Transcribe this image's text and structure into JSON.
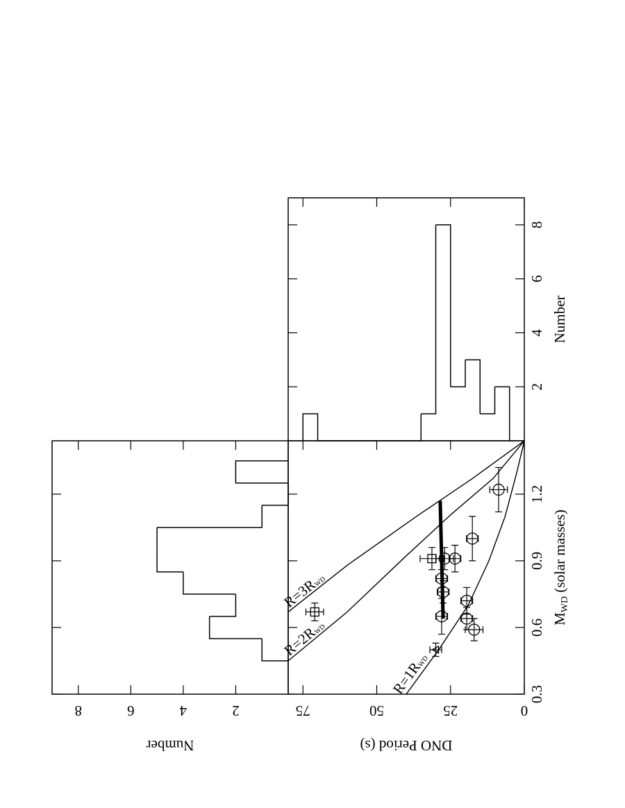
{
  "chart_data": [
    {
      "type": "scatter",
      "xlabel": {
        "main": "M",
        "sub": "WD",
        "rest": " (solar masses)"
      },
      "ylabel": "DNO Period (s)",
      "x": [
        1.22,
        1.0,
        0.91,
        0.91,
        0.91,
        0.82,
        0.76,
        0.72,
        0.64,
        0.59,
        0.65,
        0.5,
        0.67
      ],
      "values": [
        8.7,
        17.6,
        23.5,
        27,
        31.3,
        28,
        27.5,
        19.5,
        19.5,
        17,
        28,
        30,
        71
      ],
      "xerr": [
        0.1,
        0.1,
        0.06,
        0.05,
        0.05,
        0.04,
        0.05,
        0.06,
        0.05,
        0.05,
        0.08,
        0.03,
        0.04
      ],
      "yerr": [
        3,
        2,
        2,
        3,
        4,
        2,
        2,
        2,
        2,
        3,
        2,
        2,
        3
      ],
      "markers": [
        "o",
        "o",
        "o",
        "o",
        "s",
        "o",
        "o",
        "o",
        "o",
        "o",
        "o",
        "^",
        "s"
      ],
      "color": "#000000",
      "xlim": [
        0.3,
        1.44
      ],
      "ylim": [
        0,
        80
      ],
      "xticks": [
        0.3,
        0.6,
        0.9,
        1.2
      ],
      "yticks": [
        0,
        25,
        50,
        75
      ],
      "curves": [
        {
          "name": "R=1R",
          "name_sub": "WD",
          "x": [
            0.3,
            0.5,
            0.7,
            0.9,
            1.1,
            1.3,
            1.44
          ],
          "values": [
            40,
            29,
            19,
            12,
            6.5,
            2.5,
            0
          ]
        },
        {
          "name": "R=2R",
          "name_sub": "WD",
          "x": [
            0.45,
            0.67,
            0.91,
            1.11,
            1.27,
            1.44
          ],
          "values": [
            80,
            60,
            41,
            24.7,
            10.6,
            0
          ]
        },
        {
          "name": "R=3R",
          "name_sub": "WD",
          "x": [
            0.67,
            0.88,
            1.1,
            1.27,
            1.44
          ],
          "values": [
            80,
            60,
            36.5,
            17.6,
            0
          ]
        }
      ],
      "fit": {
        "x": [
          0.64,
          1.17
        ],
        "values": [
          27.5,
          28.5
        ]
      }
    },
    {
      "type": "histogram",
      "orientation": "vertical",
      "ylabel": "Number",
      "bins": [
        0.45,
        0.55,
        0.65,
        0.75,
        0.85,
        0.95,
        1.05,
        1.15,
        1.25,
        1.35
      ],
      "values": [
        1,
        3,
        2,
        4,
        5,
        5,
        1,
        0,
        2
      ],
      "xlim": [
        0.3,
        1.44
      ],
      "ylim": [
        0,
        9
      ],
      "xticks": [
        0.3,
        0.6,
        0.9,
        1.2
      ],
      "yticks": [
        2,
        4,
        6,
        8
      ]
    },
    {
      "type": "histogram",
      "orientation": "horizontal",
      "xlabel": "Number",
      "bins": [
        5,
        10,
        15,
        20,
        25,
        30,
        35,
        40,
        45,
        50,
        55,
        60,
        65,
        70,
        75
      ],
      "values": [
        2,
        1,
        3,
        2,
        8,
        1,
        0,
        0,
        0,
        0,
        0,
        0,
        0,
        1
      ],
      "xlim": [
        0,
        9
      ],
      "ylim": [
        0,
        80
      ],
      "xticks": [
        2,
        4,
        6,
        8
      ],
      "yticks": [
        0,
        25,
        50,
        75
      ]
    }
  ]
}
